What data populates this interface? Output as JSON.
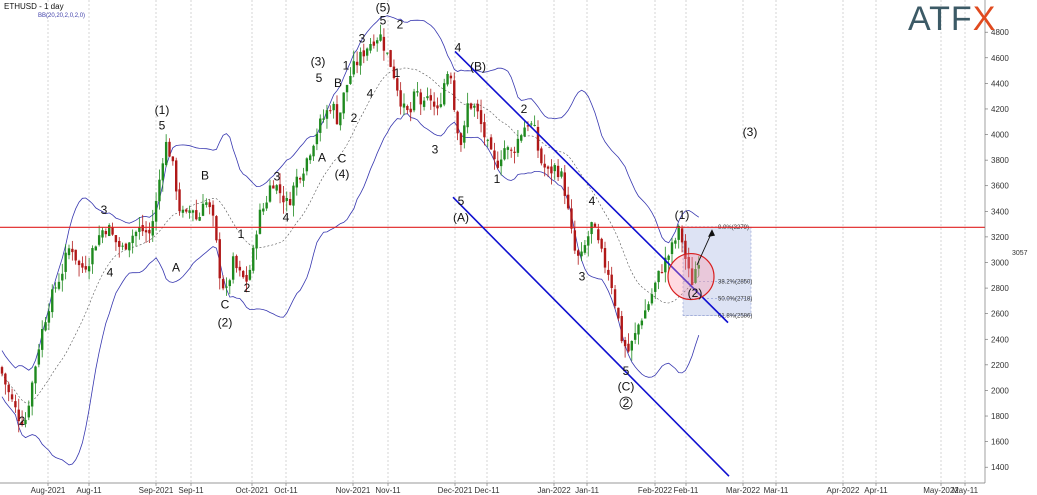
{
  "header": {
    "symbol_label": "ETHUSD - 1 day",
    "indicator_label": "BB(20,20,2,0,2,0)"
  },
  "logo": {
    "text_main": "ATF",
    "text_x": "X"
  },
  "price_label": "3057",
  "colors": {
    "up_candle": "#1f8a1f",
    "down_candle": "#b01818",
    "bollinger": "#3838b0",
    "resistance": "#e02020",
    "channel": "#1010d0",
    "grid": "#b8b8b8",
    "fib_box": "#dde3f4"
  },
  "chart_data": {
    "type": "candlestick",
    "title": "ETHUSD - 1 day",
    "indicator": "BB(20,20,2,0,2,0)",
    "ylim": [
      1300,
      4950
    ],
    "y_ticks": [
      1400,
      1600,
      1800,
      2000,
      2200,
      2400,
      2600,
      2800,
      3000,
      3200,
      3400,
      3600,
      3800,
      4000,
      4200,
      4400,
      4600,
      4800
    ],
    "x_ticks": [
      "Aug-2021",
      "Aug-11",
      "Sep-2021",
      "Sep-11",
      "Oct-2021",
      "Oct-11",
      "Nov-2021",
      "Nov-11",
      "Dec-2021",
      "Dec-11",
      "Jan-2022",
      "Jan-11",
      "Feb-2022",
      "Feb-11",
      "Mar-2022",
      "Mar-11",
      "Apr-2022",
      "Apr-11",
      "May-2022",
      "May-11"
    ],
    "resistance_level": 3275,
    "last_price": 3057,
    "close_path": [
      [
        0,
        2180
      ],
      [
        8,
        1990
      ],
      [
        18,
        1800
      ],
      [
        25,
        1760
      ],
      [
        32,
        2050
      ],
      [
        40,
        2400
      ],
      [
        48,
        2650
      ],
      [
        56,
        2820
      ],
      [
        63,
        2950
      ],
      [
        68,
        3100
      ],
      [
        72,
        3120
      ],
      [
        80,
        2950
      ],
      [
        88,
        3000
      ],
      [
        95,
        3150
      ],
      [
        102,
        3250
      ],
      [
        108,
        3280
      ],
      [
        114,
        3180
      ],
      [
        122,
        3100
      ],
      [
        130,
        3200
      ],
      [
        140,
        3260
      ],
      [
        150,
        3220
      ],
      [
        157,
        3500
      ],
      [
        162,
        3800
      ],
      [
        167,
        3950
      ],
      [
        174,
        3700
      ],
      [
        180,
        3400
      ],
      [
        186,
        3350
      ],
      [
        192,
        3450
      ],
      [
        198,
        3300
      ],
      [
        203,
        3500
      ],
      [
        208,
        3450
      ],
      [
        214,
        3300
      ],
      [
        220,
        2900
      ],
      [
        226,
        2750
      ],
      [
        233,
        3000
      ],
      [
        240,
        2900
      ],
      [
        246,
        2850
      ],
      [
        252,
        3000
      ],
      [
        258,
        3350
      ],
      [
        265,
        3450
      ],
      [
        272,
        3650
      ],
      [
        280,
        3550
      ],
      [
        288,
        3450
      ],
      [
        296,
        3650
      ],
      [
        304,
        3750
      ],
      [
        311,
        3900
      ],
      [
        318,
        4050
      ],
      [
        325,
        4150
      ],
      [
        332,
        4250
      ],
      [
        338,
        4100
      ],
      [
        345,
        4350
      ],
      [
        352,
        4500
      ],
      [
        360,
        4600
      ],
      [
        368,
        4700
      ],
      [
        374,
        4750
      ],
      [
        380,
        4780
      ],
      [
        386,
        4650
      ],
      [
        393,
        4500
      ],
      [
        398,
        4350
      ],
      [
        403,
        4200
      ],
      [
        410,
        4150
      ],
      [
        416,
        4350
      ],
      [
        423,
        4200
      ],
      [
        430,
        4300
      ],
      [
        437,
        4150
      ],
      [
        444,
        4400
      ],
      [
        450,
        4550
      ],
      [
        455,
        4150
      ],
      [
        462,
        3900
      ],
      [
        468,
        4250
      ],
      [
        476,
        4200
      ],
      [
        484,
        4000
      ],
      [
        490,
        3850
      ],
      [
        496,
        3750
      ],
      [
        504,
        3900
      ],
      [
        512,
        3850
      ],
      [
        520,
        4000
      ],
      [
        527,
        4100
      ],
      [
        534,
        4050
      ],
      [
        540,
        3800
      ],
      [
        548,
        3700
      ],
      [
        556,
        3750
      ],
      [
        563,
        3650
      ],
      [
        568,
        3400
      ],
      [
        574,
        3100
      ],
      [
        580,
        3000
      ],
      [
        586,
        3150
      ],
      [
        592,
        3300
      ],
      [
        598,
        3150
      ],
      [
        604,
        3000
      ],
      [
        610,
        2900
      ],
      [
        616,
        2650
      ],
      [
        622,
        2400
      ],
      [
        628,
        2300
      ],
      [
        634,
        2400
      ],
      [
        640,
        2550
      ],
      [
        647,
        2650
      ],
      [
        654,
        2800
      ],
      [
        661,
        2950
      ],
      [
        668,
        3050
      ],
      [
        674,
        3150
      ],
      [
        679,
        3250
      ],
      [
        683,
        3150
      ],
      [
        687,
        2950
      ],
      [
        692,
        2850
      ],
      [
        697,
        3000
      ],
      [
        700,
        3057
      ]
    ],
    "wave_labels": [
      {
        "text": "2",
        "x": 22,
        "y": 1730
      },
      {
        "text": "3",
        "x": 104,
        "y": 3380
      },
      {
        "text": "4",
        "x": 110,
        "y": 2890
      },
      {
        "text": "(1)",
        "x": 162,
        "y": 4160
      },
      {
        "text": "5",
        "x": 162,
        "y": 4040
      },
      {
        "text": "A",
        "x": 176,
        "y": 2930
      },
      {
        "text": "B",
        "x": 205,
        "y": 3650
      },
      {
        "text": "1",
        "x": 241,
        "y": 3190
      },
      {
        "text": "2",
        "x": 247,
        "y": 2770
      },
      {
        "text": "C",
        "x": 225,
        "y": 2640
      },
      {
        "text": "(2)",
        "x": 225,
        "y": 2500
      },
      {
        "text": "3",
        "x": 277,
        "y": 3640
      },
      {
        "text": "4",
        "x": 286,
        "y": 3320
      },
      {
        "text": "(3)",
        "x": 318,
        "y": 4540
      },
      {
        "text": "5",
        "x": 319,
        "y": 4410
      },
      {
        "text": "A",
        "x": 322,
        "y": 3790
      },
      {
        "text": "B",
        "x": 338,
        "y": 4370
      },
      {
        "text": "C",
        "x": 342,
        "y": 3780
      },
      {
        "text": "(4)",
        "x": 342,
        "y": 3660
      },
      {
        "text": "1",
        "x": 346,
        "y": 4510
      },
      {
        "text": "2",
        "x": 354,
        "y": 4100
      },
      {
        "text": "3",
        "x": 362,
        "y": 4720
      },
      {
        "text": "4",
        "x": 370,
        "y": 4290
      },
      {
        "text": "(5)",
        "x": 383,
        "y": 4960
      },
      {
        "text": "5",
        "x": 383,
        "y": 4860
      },
      {
        "text": "2",
        "x": 400,
        "y": 4830
      },
      {
        "text": "1",
        "x": 397,
        "y": 4450
      },
      {
        "text": "3",
        "x": 435,
        "y": 3850
      },
      {
        "text": "4",
        "x": 458,
        "y": 4650
      },
      {
        "text": "(B)",
        "x": 478,
        "y": 4500
      },
      {
        "text": "5",
        "x": 461,
        "y": 3450
      },
      {
        "text": "(A)",
        "x": 461,
        "y": 3320
      },
      {
        "text": "1",
        "x": 497,
        "y": 3620
      },
      {
        "text": "2",
        "x": 524,
        "y": 4170
      },
      {
        "text": "4",
        "x": 592,
        "y": 3450
      },
      {
        "text": "3",
        "x": 582,
        "y": 2860
      },
      {
        "text": "5",
        "x": 626,
        "y": 2120
      },
      {
        "text": "(C)",
        "x": 626,
        "y": 2000
      },
      {
        "text": "2",
        "x": 626,
        "y": 1870
      },
      {
        "text": "(1)",
        "x": 682,
        "y": 3340
      },
      {
        "text": "(2)",
        "x": 695,
        "y": 2730
      },
      {
        "text": "(3)",
        "x": 750,
        "y": 3990
      }
    ],
    "fib_levels": [
      {
        "label": "0.0%(3279)",
        "value": 3279
      },
      {
        "label": "38.2%(2850)",
        "value": 2850
      },
      {
        "label": "50.0%(2718)",
        "value": 2718
      },
      {
        "label": "61.8%(2586)",
        "value": 2586
      }
    ]
  }
}
